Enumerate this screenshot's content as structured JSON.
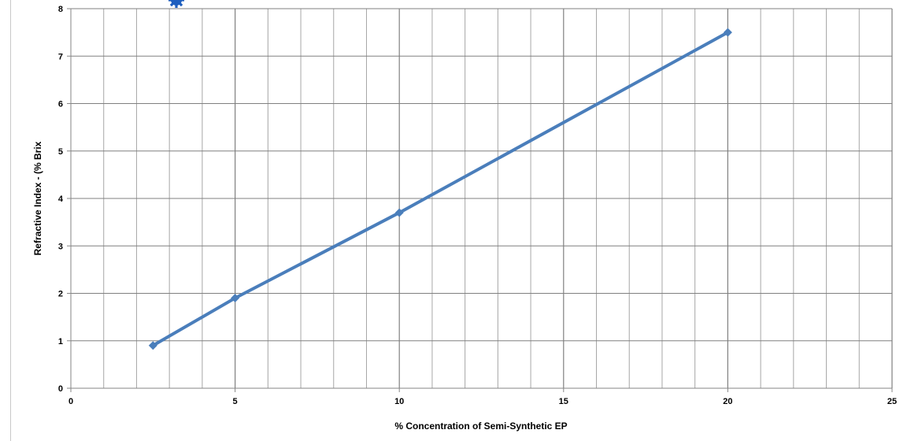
{
  "chart_data": {
    "type": "line",
    "xlabel": "% Concentration of Semi-Synthetic EP",
    "ylabel": "Refractive Index - (% Brix",
    "xlim": [
      0,
      25
    ],
    "ylim": [
      0,
      8
    ],
    "x_ticks": [
      0,
      5,
      10,
      15,
      20,
      25
    ],
    "y_ticks": [
      0,
      1,
      2,
      3,
      4,
      5,
      6,
      7,
      8
    ],
    "x_minor_step": 1,
    "grid": true,
    "series": [
      {
        "color": "#4a7ebb",
        "marker": "diamond",
        "points": [
          {
            "x": 2.5,
            "y": 0.9
          },
          {
            "x": 5,
            "y": 1.9
          },
          {
            "x": 10,
            "y": 3.7
          },
          {
            "x": 20,
            "y": 7.5
          }
        ]
      }
    ],
    "colors": {
      "line": "#4a7ebb",
      "grid_major": "#808080",
      "grid_minor": "#a6a6a6",
      "axis": "#868686",
      "logo": "#1f5fbf"
    },
    "logo_icon": "gear-logo-icon"
  }
}
